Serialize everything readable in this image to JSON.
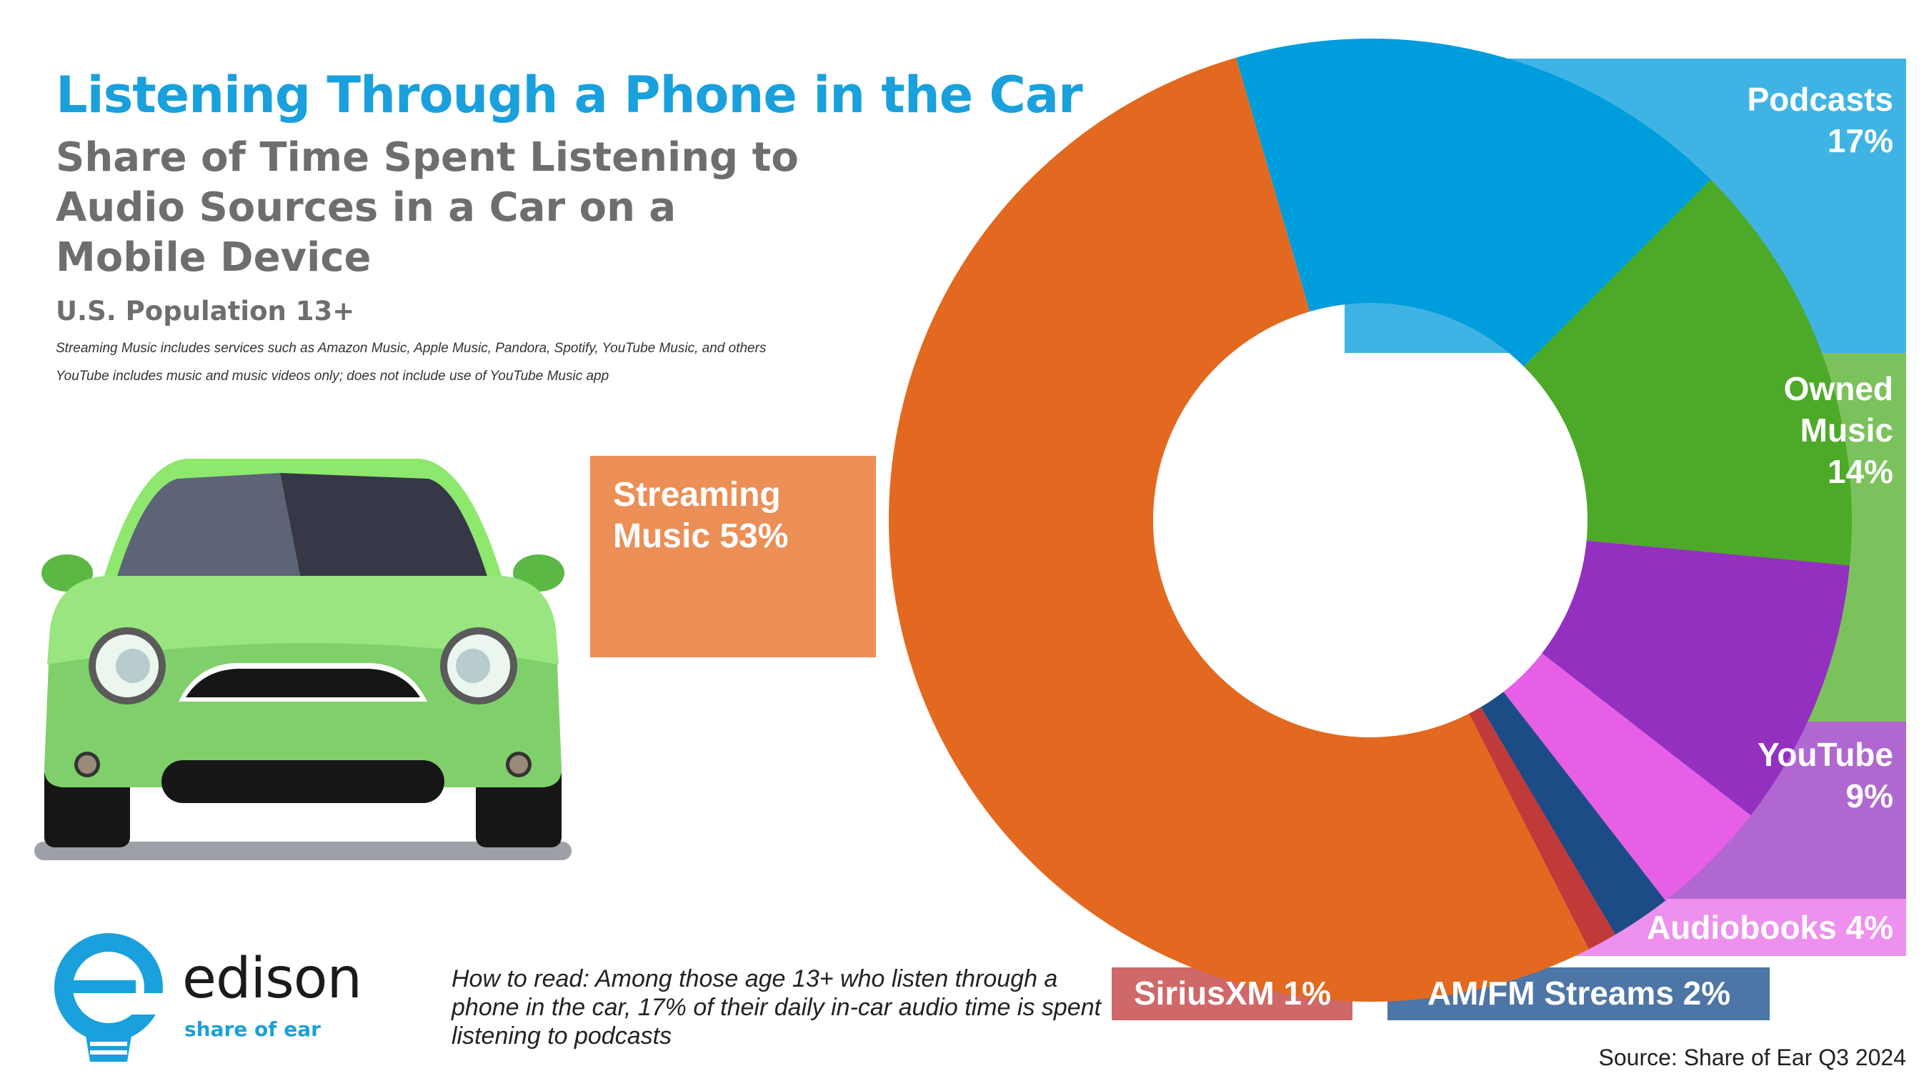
{
  "header": {
    "title": "Listening Through a Phone in the Car",
    "subtitle": "Share of Time Spent Listening to Audio Sources in a Car on a Mobile Device",
    "population": "U.S. Population 13+",
    "note_streaming": "Streaming Music includes services such as Amazon Music, Apple Music, Pandora, Spotify, YouTube Music, and others",
    "note_youtube": "YouTube includes music and music videos only; does not include use of YouTube Music app"
  },
  "chart_data": {
    "type": "donut",
    "slices": [
      {
        "label_lines": [
          "Podcasts",
          "17%"
        ],
        "value": 17,
        "color": "#009ddc",
        "label_color": "#3fb4e4"
      },
      {
        "label_lines": [
          "Owned",
          "Music",
          "14%"
        ],
        "value": 14,
        "color": "#4caa28",
        "label_color": "#7cc25c"
      },
      {
        "label_lines": [
          "YouTube",
          "9%"
        ],
        "value": 9,
        "color": "#9430c0",
        "label_color": "#b068d0"
      },
      {
        "label_lines": [
          "Audiobooks 4%"
        ],
        "value": 4,
        "color": "#e65fe6",
        "label_color": "#ee90ee"
      },
      {
        "label_lines": [
          "AM/FM Streams 2%"
        ],
        "value": 2,
        "color": "#1b4c86",
        "label_color": "#4d75a6"
      },
      {
        "label_lines": [
          "SiriusXM 1%"
        ],
        "value": 1,
        "color": "#c03a3a",
        "label_color": "#cf6868"
      },
      {
        "label_lines": [
          "Streaming",
          "Music 53%"
        ],
        "value": 53,
        "color": "#e2691f",
        "label_color": "#eb8f57"
      }
    ]
  },
  "footer": {
    "logo_icon": "lightbulb-e-icon",
    "brand_name": "edison",
    "brand_tagline": "share of ear",
    "how_to_read": "How to read: Among those age 13+ who listen through a phone in the car, 17% of their daily in-car audio time is spent listening to podcasts",
    "source": "Source: Share of Ear Q3 2024"
  },
  "illustration": {
    "icon": "green-car-icon"
  }
}
